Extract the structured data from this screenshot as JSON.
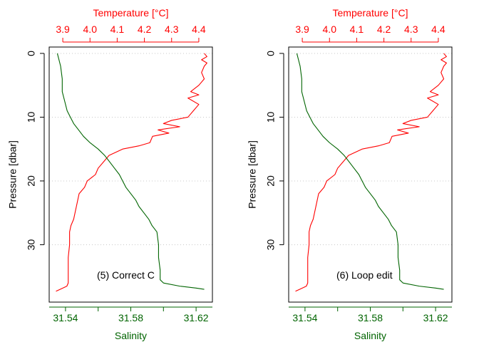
{
  "colors": {
    "temperature": "#ff0000",
    "salinity": "#006400",
    "grid": "#c8c8c8",
    "frame": "#000000"
  },
  "chart_data": [
    {
      "type": "line",
      "annotation": "(5) Correct C",
      "x_top": {
        "label": "Temperature [°C]",
        "ticks": [
          3.9,
          4.0,
          4.1,
          4.2,
          4.3,
          4.4
        ],
        "tick_labels": [
          "3.9",
          "4.0",
          "4.1",
          "4.2",
          "4.3",
          "4.4"
        ],
        "range": [
          3.85,
          4.45
        ]
      },
      "x_bottom": {
        "label": "Salinity",
        "ticks": [
          31.54,
          31.58,
          31.62
        ],
        "tick_labels": [
          "31.54",
          "31.58",
          "31.62"
        ],
        "minor_ticks": [
          31.56,
          31.6
        ],
        "range": [
          31.53,
          31.63
        ]
      },
      "y": {
        "label": "Pressure [dbar]",
        "ticks": [
          0,
          10,
          20,
          30
        ],
        "tick_labels": [
          "0",
          "10",
          "20",
          "30"
        ],
        "range": [
          -1,
          39
        ],
        "reversed": true
      },
      "grid": "horizontal dotted",
      "series": [
        {
          "variable": "temperature",
          "color": "#ff0000",
          "points": [
            [
              4.42,
              0
            ],
            [
              4.43,
              0.5
            ],
            [
              4.41,
              1
            ],
            [
              4.43,
              1.5
            ],
            [
              4.42,
              2
            ],
            [
              4.41,
              3
            ],
            [
              4.42,
              4
            ],
            [
              4.4,
              5
            ],
            [
              4.37,
              6
            ],
            [
              4.4,
              6.5
            ],
            [
              4.36,
              7
            ],
            [
              4.4,
              8
            ],
            [
              4.38,
              9
            ],
            [
              4.36,
              10
            ],
            [
              4.3,
              10.5
            ],
            [
              4.27,
              11
            ],
            [
              4.33,
              11.5
            ],
            [
              4.25,
              12
            ],
            [
              4.29,
              12.5
            ],
            [
              4.23,
              13
            ],
            [
              4.22,
              14
            ],
            [
              4.18,
              14.5
            ],
            [
              4.12,
              15
            ],
            [
              4.07,
              16
            ],
            [
              4.05,
              17
            ],
            [
              4.03,
              18
            ],
            [
              4.02,
              19
            ],
            [
              3.99,
              20
            ],
            [
              3.98,
              21
            ],
            [
              3.96,
              22
            ],
            [
              3.95,
              24
            ],
            [
              3.94,
              26
            ],
            [
              3.93,
              27
            ],
            [
              3.925,
              28
            ],
            [
              3.925,
              30
            ],
            [
              3.92,
              32
            ],
            [
              3.92,
              34
            ],
            [
              3.92,
              36
            ],
            [
              3.915,
              36.5
            ],
            [
              3.89,
              37
            ],
            [
              3.875,
              37.3
            ]
          ]
        },
        {
          "variable": "salinity",
          "color": "#006400",
          "points": [
            [
              31.535,
              0
            ],
            [
              31.536,
              1
            ],
            [
              31.537,
              2
            ],
            [
              31.538,
              4
            ],
            [
              31.538,
              6
            ],
            [
              31.54,
              8
            ],
            [
              31.541,
              9
            ],
            [
              31.543,
              10
            ],
            [
              31.545,
              11
            ],
            [
              31.548,
              12
            ],
            [
              31.551,
              13
            ],
            [
              31.555,
              14
            ],
            [
              31.56,
              15
            ],
            [
              31.564,
              16
            ],
            [
              31.567,
              17
            ],
            [
              31.57,
              18
            ],
            [
              31.573,
              19
            ],
            [
              31.575,
              20
            ],
            [
              31.577,
              21
            ],
            [
              31.58,
              22
            ],
            [
              31.583,
              23
            ],
            [
              31.585,
              24
            ],
            [
              31.588,
              25
            ],
            [
              31.591,
              26
            ],
            [
              31.593,
              27
            ],
            [
              31.596,
              28
            ],
            [
              31.597,
              30
            ],
            [
              31.597,
              32
            ],
            [
              31.598,
              34
            ],
            [
              31.598,
              35.5
            ],
            [
              31.6,
              36
            ],
            [
              31.61,
              36.5
            ],
            [
              31.62,
              36.8
            ],
            [
              31.625,
              37
            ]
          ]
        }
      ]
    },
    {
      "type": "line",
      "annotation": "(6) Loop edit",
      "x_top": {
        "label": "Temperature [°C]",
        "ticks": [
          3.9,
          4.0,
          4.1,
          4.2,
          4.3,
          4.4
        ],
        "tick_labels": [
          "3.9",
          "4.0",
          "4.1",
          "4.2",
          "4.3",
          "4.4"
        ],
        "range": [
          3.85,
          4.45
        ]
      },
      "x_bottom": {
        "label": "Salinity",
        "ticks": [
          31.54,
          31.58,
          31.62
        ],
        "tick_labels": [
          "31.54",
          "31.58",
          "31.62"
        ],
        "minor_ticks": [
          31.56,
          31.6
        ],
        "range": [
          31.53,
          31.63
        ]
      },
      "y": {
        "label": "Pressure [dbar]",
        "ticks": [
          0,
          10,
          20,
          30
        ],
        "tick_labels": [
          "0",
          "10",
          "20",
          "30"
        ],
        "range": [
          -1,
          39
        ],
        "reversed": true
      },
      "grid": "horizontal dotted",
      "series": [
        {
          "variable": "temperature",
          "color": "#ff0000",
          "points": [
            [
              4.42,
              0
            ],
            [
              4.43,
              0.5
            ],
            [
              4.41,
              1
            ],
            [
              4.43,
              1.5
            ],
            [
              4.42,
              2
            ],
            [
              4.41,
              3
            ],
            [
              4.42,
              4
            ],
            [
              4.4,
              5
            ],
            [
              4.37,
              6
            ],
            [
              4.4,
              6.5
            ],
            [
              4.36,
              7
            ],
            [
              4.4,
              8
            ],
            [
              4.38,
              9
            ],
            [
              4.36,
              10
            ],
            [
              4.3,
              10.5
            ],
            [
              4.27,
              11
            ],
            [
              4.33,
              11.5
            ],
            [
              4.25,
              12
            ],
            [
              4.29,
              12.5
            ],
            [
              4.23,
              13
            ],
            [
              4.22,
              14
            ],
            [
              4.18,
              14.5
            ],
            [
              4.12,
              15
            ],
            [
              4.07,
              16
            ],
            [
              4.05,
              17
            ],
            [
              4.03,
              18
            ],
            [
              4.02,
              19
            ],
            [
              3.99,
              20
            ],
            [
              3.98,
              21
            ],
            [
              3.96,
              22
            ],
            [
              3.95,
              24
            ],
            [
              3.94,
              26
            ],
            [
              3.93,
              27
            ],
            [
              3.925,
              28
            ],
            [
              3.925,
              30
            ],
            [
              3.92,
              32
            ],
            [
              3.92,
              34
            ],
            [
              3.92,
              36
            ],
            [
              3.915,
              36.5
            ],
            [
              3.89,
              37
            ],
            [
              3.875,
              37.3
            ]
          ]
        },
        {
          "variable": "salinity",
          "color": "#006400",
          "points": [
            [
              31.535,
              0
            ],
            [
              31.536,
              1
            ],
            [
              31.537,
              2
            ],
            [
              31.538,
              4
            ],
            [
              31.538,
              6
            ],
            [
              31.54,
              8
            ],
            [
              31.541,
              9
            ],
            [
              31.543,
              10
            ],
            [
              31.545,
              11
            ],
            [
              31.548,
              12
            ],
            [
              31.551,
              13
            ],
            [
              31.555,
              14
            ],
            [
              31.56,
              15
            ],
            [
              31.564,
              16
            ],
            [
              31.567,
              17
            ],
            [
              31.57,
              18
            ],
            [
              31.573,
              19
            ],
            [
              31.575,
              20
            ],
            [
              31.577,
              21
            ],
            [
              31.58,
              22
            ],
            [
              31.583,
              23
            ],
            [
              31.585,
              24
            ],
            [
              31.588,
              25
            ],
            [
              31.591,
              26
            ],
            [
              31.593,
              27
            ],
            [
              31.596,
              28
            ],
            [
              31.597,
              30
            ],
            [
              31.597,
              32
            ],
            [
              31.598,
              34
            ],
            [
              31.598,
              35.5
            ],
            [
              31.6,
              36
            ],
            [
              31.61,
              36.5
            ],
            [
              31.62,
              36.8
            ],
            [
              31.625,
              37
            ]
          ]
        }
      ]
    }
  ]
}
